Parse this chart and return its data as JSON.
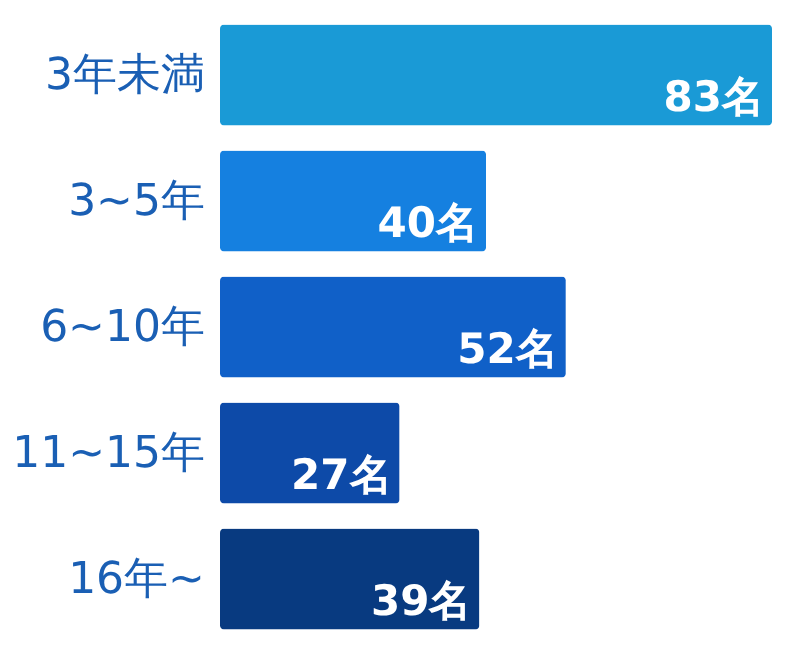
{
  "chart_data": {
    "type": "bar",
    "orientation": "horizontal",
    "categories": [
      "3年未満",
      "3~5年",
      "6~10年",
      "11~15年",
      "16年~"
    ],
    "values": [
      83,
      40,
      52,
      27,
      39
    ],
    "colors": [
      "#1a9ad6",
      "#1580e0",
      "#1060c8",
      "#0d4aa8",
      "#083a80"
    ],
    "value_labels": [
      "83名",
      "40名",
      "52名",
      "27名",
      "39名"
    ]
  }
}
